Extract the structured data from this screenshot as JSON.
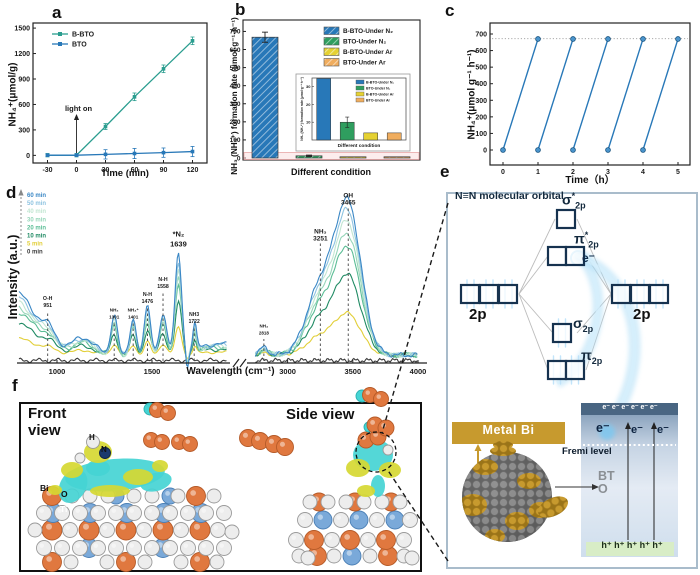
{
  "panel_letters": {
    "a": "a",
    "b": "b",
    "c": "c",
    "d": "d",
    "e": "e",
    "f": "f"
  },
  "chart_data": [
    {
      "panel": "a",
      "type": "line",
      "xlabel": "Time (min)",
      "ylabel": "NH₄⁺(μmol/g)",
      "xticks": [
        -30,
        0,
        30,
        60,
        90,
        120
      ],
      "yticks": [
        0,
        300,
        600,
        900,
        1200,
        1500
      ],
      "xlim": [
        -45,
        135
      ],
      "ylim": [
        -90,
        1560
      ],
      "annotation": "light on",
      "series": [
        {
          "name": "B-BTO",
          "color": "#2a9d8f",
          "x": [
            -30,
            0,
            30,
            60,
            90,
            120
          ],
          "y": [
            2,
            2,
            340,
            690,
            1020,
            1350
          ],
          "err": [
            20,
            20,
            35,
            45,
            45,
            45
          ]
        },
        {
          "name": "BTO",
          "color": "#2878b8",
          "x": [
            -30,
            0,
            30,
            60,
            90,
            120
          ],
          "y": [
            2,
            2,
            12,
            22,
            32,
            45
          ],
          "err": [
            15,
            15,
            55,
            60,
            55,
            60
          ]
        }
      ]
    },
    {
      "panel": "b",
      "type": "bar",
      "xlabel": "Different condition",
      "ylabel": "NH₃ (NH₄⁺) formation rate (μmol·g⁻¹·h⁻¹)",
      "yticks": [
        0,
        100,
        200,
        300,
        400,
        500,
        600,
        700
      ],
      "ylim": [
        0,
        730
      ],
      "categories": [
        "B-BTO-Under N₂",
        "BTO-Under N₂",
        "B-BTO-Under Ar",
        "BTO-Under Ar"
      ],
      "values": [
        668,
        12,
        5,
        5
      ],
      "errors": [
        28,
        4,
        2,
        2
      ],
      "colors": [
        "#2878b8",
        "#2f9e5f",
        "#e5d132",
        "#f0ad5e"
      ],
      "highlight_ymax": 30,
      "inset": {
        "yticks": [
          10,
          20,
          30
        ],
        "ylim": [
          0,
          36
        ],
        "values": [
          35,
          10,
          4,
          4
        ],
        "errors": [
          0,
          3,
          0,
          0
        ]
      }
    },
    {
      "panel": "c",
      "type": "line",
      "xlabel": "Time（h）",
      "ylabel": "NH₄⁺(μmol g⁻¹ h⁻¹)",
      "xticks": [
        0,
        1,
        2,
        3,
        4,
        5
      ],
      "yticks": [
        0,
        100,
        200,
        300,
        400,
        500,
        600,
        700
      ],
      "color": "#2878b8",
      "marker_fill": "#4a94cc",
      "dotted_line_y": 672,
      "cycle_peak": 670,
      "cycles": [
        [
          0,
          1
        ],
        [
          1,
          2
        ],
        [
          2,
          3
        ],
        [
          3,
          4
        ],
        [
          4,
          5
        ]
      ]
    },
    {
      "panel": "d",
      "type": "line",
      "xlabel": "Wavelength (cm⁻¹)",
      "ylabel": "Intensity (a.u.)",
      "xticks_left": [
        1000,
        1500
      ],
      "xticks_right": [
        3000,
        3500,
        4000
      ],
      "series": [
        {
          "name": "60 min",
          "color": "#3a87c5",
          "scale": 1.0
        },
        {
          "name": "50 min",
          "color": "#8ec3e0",
          "scale": 0.93
        },
        {
          "name": "40 min",
          "color": "#c2e6d2",
          "scale": 0.86
        },
        {
          "name": "30 min",
          "color": "#96d6b9",
          "scale": 0.78
        },
        {
          "name": "20 min",
          "color": "#5bbd95",
          "scale": 0.7
        },
        {
          "name": "10 min",
          "color": "#1f8a63",
          "scale": 0.52
        },
        {
          "name": "5 min",
          "color": "#e2cf39",
          "scale": 0.27
        },
        {
          "name": "0 min",
          "color": "#3a3a3a",
          "scale": 0.0
        }
      ],
      "peaks": [
        {
          "label": "O-H",
          "wavenumber": 951
        },
        {
          "label": "NH₃",
          "wavenumber": 1301
        },
        {
          "label": "NH₄⁺",
          "wavenumber": 1401
        },
        {
          "label": "N-H",
          "wavenumber": 1476
        },
        {
          "label": "N-H",
          "wavenumber": 1558
        },
        {
          "label": "*N₂",
          "wavenumber": 1639
        },
        {
          "label": "NH3",
          "wavenumber": 1722
        },
        {
          "label": "NH₄",
          "wavenumber": 2818
        },
        {
          "label": "NH₃",
          "wavenumber": 3251
        },
        {
          "label": "OH",
          "wavenumber": 3465
        }
      ]
    }
  ],
  "panel_e": {
    "mo_title": "N≡N molecular orbital",
    "orbitals": {
      "sigma_star": {
        "sym": "σ",
        "sup": "*",
        "sub": "2p"
      },
      "pi_star": {
        "sym": "π",
        "sup": "*",
        "sub": "2p"
      },
      "sigma": {
        "sym": "σ",
        "sub": "2p"
      },
      "pi": {
        "sym": "π",
        "sub": "2p"
      },
      "left": "2p",
      "right": "2p"
    },
    "electron_label": "e⁻",
    "metal_label": "Metal Bi",
    "band": {
      "top_electrons": "e⁻ e⁻ e⁻ e⁻ e⁻ e⁻",
      "mid_electrons": [
        "e⁻",
        "e⁻",
        "e⁻"
      ],
      "fermi_label": "Fremi level",
      "material_label": "BTO",
      "holes": "h⁺ h⁺ h⁺ h⁺ h⁺"
    },
    "colors": {
      "gold": "#c79a2e",
      "navy": "#16324f",
      "glow": "#8fd0f5"
    }
  },
  "panel_f": {
    "views": [
      "Front view",
      "Side view"
    ],
    "atom_labels": [
      "H",
      "N",
      "Bi",
      "O",
      "Ti"
    ],
    "atom_colors": {
      "Bi": "#e0783f",
      "O": "#ededed",
      "Ti": "#7aa9d9",
      "N": "#1a3a6e",
      "isosurface_yellow": "#d6d832",
      "isosurface_cyan": "#45d4d4"
    }
  }
}
